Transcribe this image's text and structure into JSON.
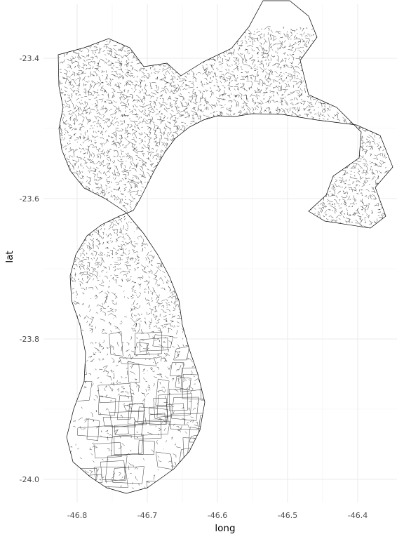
{
  "chart_data": {
    "type": "map",
    "xlabel": "long",
    "ylabel": "lat",
    "x_ticks": [
      {
        "value": -46.8,
        "label": "-46.8"
      },
      {
        "value": -46.7,
        "label": "-46.7"
      },
      {
        "value": -46.6,
        "label": "-46.6"
      },
      {
        "value": -46.5,
        "label": "-46.5"
      },
      {
        "value": -46.4,
        "label": "-46.4"
      }
    ],
    "y_ticks": [
      {
        "value": -23.4,
        "label": "-23.4"
      },
      {
        "value": -23.6,
        "label": "-23.6"
      },
      {
        "value": -23.8,
        "label": "-23.8"
      },
      {
        "value": -24.0,
        "label": "-24.0"
      }
    ],
    "xlim": [
      -46.83,
      -46.35
    ],
    "ylim": [
      -24.02,
      -23.36
    ],
    "grid": true,
    "outline": [
      [
        -46.827,
        -23.395
      ],
      [
        -46.79,
        -23.385
      ],
      [
        -46.755,
        -23.372
      ],
      [
        -46.725,
        -23.385
      ],
      [
        -46.705,
        -23.412
      ],
      [
        -46.672,
        -23.407
      ],
      [
        -46.652,
        -23.425
      ],
      [
        -46.62,
        -23.405
      ],
      [
        -46.58,
        -23.386
      ],
      [
        -46.555,
        -23.355
      ],
      [
        -46.535,
        -23.318
      ],
      [
        -46.497,
        -23.318
      ],
      [
        -46.47,
        -23.34
      ],
      [
        -46.458,
        -23.37
      ],
      [
        -46.482,
        -23.403
      ],
      [
        -46.47,
        -23.452
      ],
      [
        -46.43,
        -23.47
      ],
      [
        -46.395,
        -23.505
      ],
      [
        -46.398,
        -23.542
      ],
      [
        -46.435,
        -23.568
      ],
      [
        -46.445,
        -23.595
      ],
      [
        -46.47,
        -23.618
      ],
      [
        -46.447,
        -23.632
      ],
      [
        -46.382,
        -23.642
      ],
      [
        -46.36,
        -23.625
      ],
      [
        -46.375,
        -23.584
      ],
      [
        -46.35,
        -23.555
      ],
      [
        -46.368,
        -23.51
      ],
      [
        -46.402,
        -23.495
      ],
      [
        -46.458,
        -23.488
      ],
      [
        -46.508,
        -23.48
      ],
      [
        -46.55,
        -23.479
      ],
      [
        -46.575,
        -23.483
      ],
      [
        -46.6,
        -23.482
      ],
      [
        -46.62,
        -23.488
      ],
      [
        -46.64,
        -23.498
      ],
      [
        -46.66,
        -23.514
      ],
      [
        -46.675,
        -23.534
      ],
      [
        -46.69,
        -23.56
      ],
      [
        -46.7,
        -23.58
      ],
      [
        -46.71,
        -23.6
      ],
      [
        -46.72,
        -23.617
      ],
      [
        -46.74,
        -23.625
      ],
      [
        -46.765,
        -23.637
      ],
      [
        -46.786,
        -23.653
      ],
      [
        -46.802,
        -23.68
      ],
      [
        -46.81,
        -23.71
      ],
      [
        -46.808,
        -23.745
      ],
      [
        -46.796,
        -23.78
      ],
      [
        -46.788,
        -23.82
      ],
      [
        -46.79,
        -23.86
      ],
      [
        -46.805,
        -23.9
      ],
      [
        -46.815,
        -23.94
      ],
      [
        -46.806,
        -23.975
      ],
      [
        -46.782,
        -23.996
      ],
      [
        -46.758,
        -24.012
      ],
      [
        -46.73,
        -24.02
      ],
      [
        -46.7,
        -24.012
      ],
      [
        -46.68,
        -23.998
      ],
      [
        -46.662,
        -23.985
      ],
      [
        -46.64,
        -23.96
      ],
      [
        -46.625,
        -23.93
      ],
      [
        -46.618,
        -23.89
      ],
      [
        -46.628,
        -23.85
      ],
      [
        -46.64,
        -23.815
      ],
      [
        -46.65,
        -23.78
      ],
      [
        -46.655,
        -23.745
      ],
      [
        -46.668,
        -23.712
      ],
      [
        -46.685,
        -23.68
      ],
      [
        -46.705,
        -23.65
      ],
      [
        -46.73,
        -23.62
      ],
      [
        -46.76,
        -23.6
      ],
      [
        -46.79,
        -23.585
      ],
      [
        -46.81,
        -23.56
      ],
      [
        -46.822,
        -23.53
      ],
      [
        -46.826,
        -23.5
      ],
      [
        -46.82,
        -23.47
      ],
      [
        -46.826,
        -23.44
      ],
      [
        -46.827,
        -23.395
      ]
    ]
  }
}
